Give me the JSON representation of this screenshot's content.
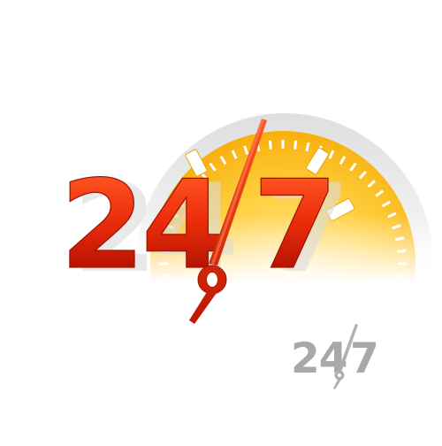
{
  "logo": {
    "main_text_left": "24",
    "main_text_right": "7",
    "small_text_left": "24",
    "small_text_right": "7"
  },
  "colors": {
    "red_top": "#ff4a1f",
    "red_bottom": "#b81400",
    "red_shadow": "#d8d8d8",
    "dial_yellow": "#ffc21a",
    "dial_light": "#ffe28a",
    "bezel_gray": "#e2e2e2",
    "small_gray": "#a8a8a8"
  },
  "icons": {
    "dial": "stopwatch-dial-icon",
    "hand": "clock-hand-icon"
  }
}
